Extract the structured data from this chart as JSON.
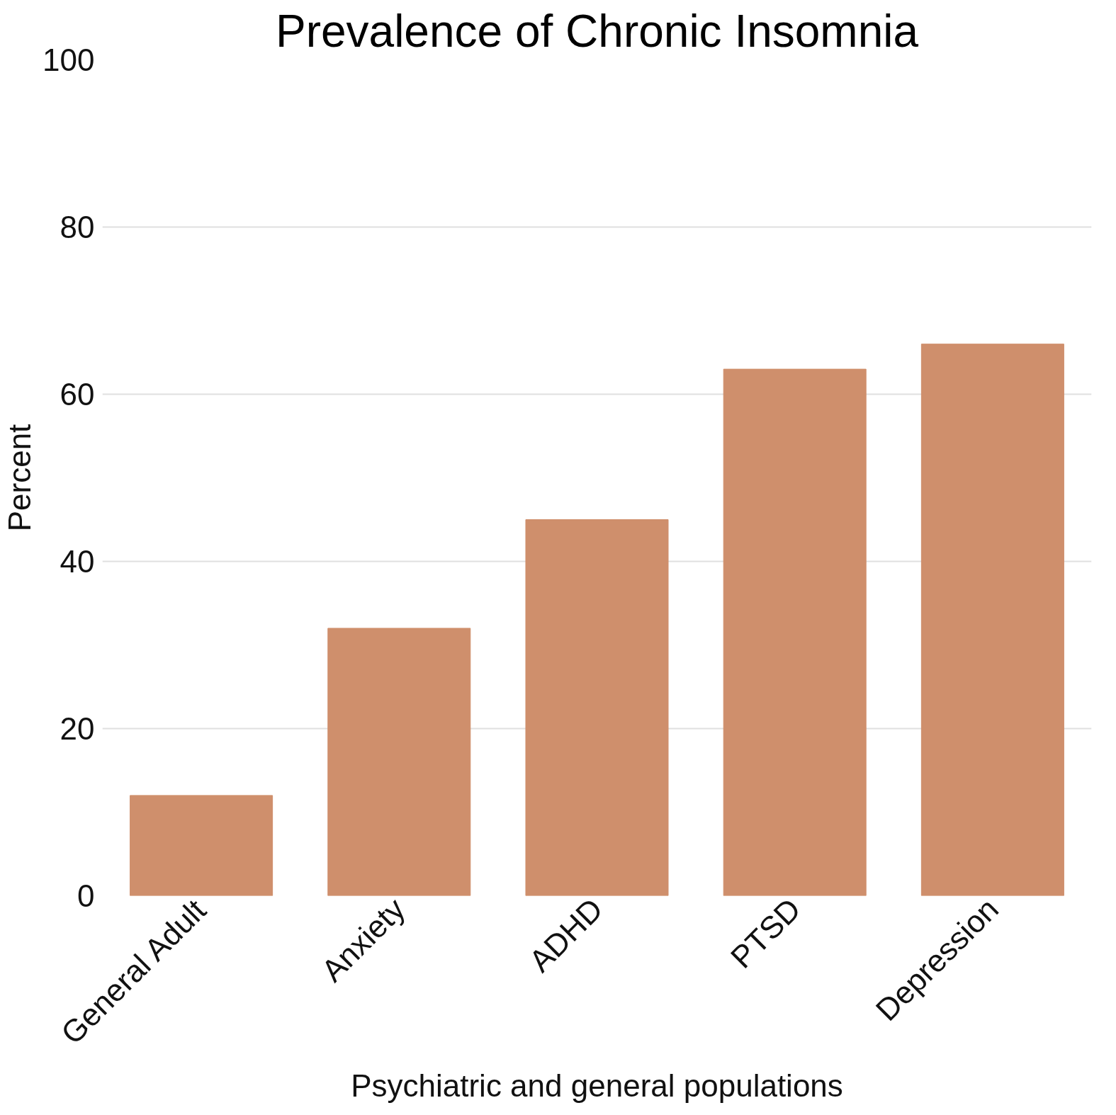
{
  "chart_data": {
    "type": "bar",
    "title": "Prevalence of Chronic Insomnia",
    "xlabel": "Psychiatric and general populations",
    "ylabel": "Percent",
    "categories": [
      "General Adult",
      "Anxiety",
      "ADHD",
      "PTSD",
      "Depression"
    ],
    "values": [
      12,
      32,
      45,
      63,
      66
    ],
    "color": "#cf8f6c",
    "ylim": [
      0,
      100
    ],
    "yticks": [
      0,
      20,
      40,
      60,
      80,
      100
    ],
    "grid": "y"
  }
}
